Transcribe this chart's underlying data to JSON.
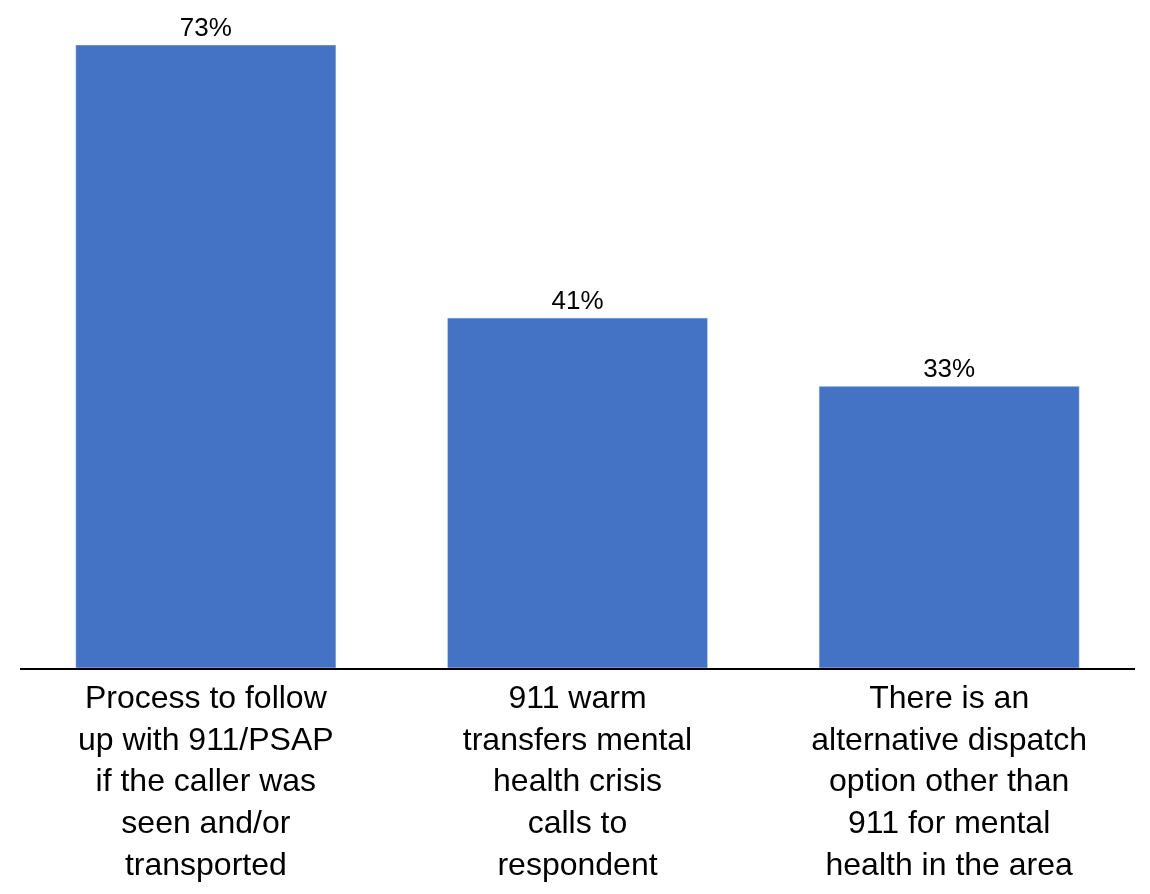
{
  "chart_data": {
    "type": "bar",
    "categories": [
      "Process to follow up with 911/PSAP if the caller was seen and/or transported",
      "911 warm transfers mental health crisis calls to respondent",
      "There is an alternative dispatch option other than 911 for mental health in the area"
    ],
    "values": [
      73,
      41,
      33
    ],
    "value_labels": [
      "73%",
      "41%",
      "33%"
    ],
    "color": "#4472c4"
  }
}
